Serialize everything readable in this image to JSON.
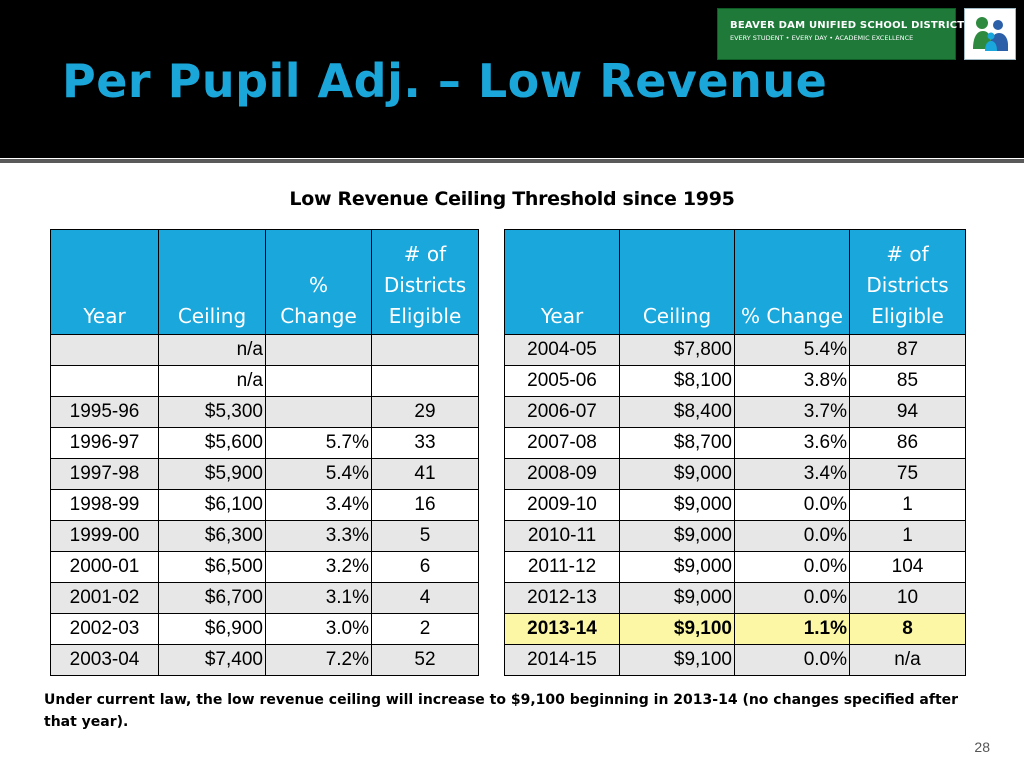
{
  "header": {
    "title": "Per Pupil Adj. – Low Revenue",
    "district_name": "BEAVER DAM UNIFIED SCHOOL DISTRICT",
    "district_tagline": "EVERY STUDENT • EVERY DAY • ACADEMIC EXCELLENCE",
    "logo_icon": "family-logo-icon"
  },
  "table_title": "Low Revenue Ceiling Threshold since 1995",
  "left_table": {
    "headers": {
      "year": "Year",
      "ceiling": "Ceiling",
      "pct_change": "% Change",
      "districts": "# of Districts Eligible"
    },
    "rows": [
      {
        "year": "",
        "ceiling": "n/a",
        "pct_change": "",
        "districts": ""
      },
      {
        "year": "",
        "ceiling": "n/a",
        "pct_change": "",
        "districts": ""
      },
      {
        "year": "1995-96",
        "ceiling": "$5,300",
        "pct_change": "",
        "districts": "29"
      },
      {
        "year": "1996-97",
        "ceiling": "$5,600",
        "pct_change": "5.7%",
        "districts": "33"
      },
      {
        "year": "1997-98",
        "ceiling": "$5,900",
        "pct_change": "5.4%",
        "districts": "41"
      },
      {
        "year": "1998-99",
        "ceiling": "$6,100",
        "pct_change": "3.4%",
        "districts": "16"
      },
      {
        "year": "1999-00",
        "ceiling": "$6,300",
        "pct_change": "3.3%",
        "districts": "5"
      },
      {
        "year": "2000-01",
        "ceiling": "$6,500",
        "pct_change": "3.2%",
        "districts": "6"
      },
      {
        "year": "2001-02",
        "ceiling": "$6,700",
        "pct_change": "3.1%",
        "districts": "4"
      },
      {
        "year": "2002-03",
        "ceiling": "$6,900",
        "pct_change": "3.0%",
        "districts": "2"
      },
      {
        "year": "2003-04",
        "ceiling": "$7,400",
        "pct_change": "7.2%",
        "districts": "52"
      }
    ]
  },
  "right_table": {
    "headers": {
      "year": "Year",
      "ceiling": "Ceiling",
      "pct_change": "% Change",
      "districts": "# of Districts Eligible"
    },
    "highlight_row": 9,
    "rows": [
      {
        "year": "2004-05",
        "ceiling": "$7,800",
        "pct_change": "5.4%",
        "districts": "87"
      },
      {
        "year": "2005-06",
        "ceiling": "$8,100",
        "pct_change": "3.8%",
        "districts": "85"
      },
      {
        "year": "2006-07",
        "ceiling": "$8,400",
        "pct_change": "3.7%",
        "districts": "94"
      },
      {
        "year": "2007-08",
        "ceiling": "$8,700",
        "pct_change": "3.6%",
        "districts": "86"
      },
      {
        "year": "2008-09",
        "ceiling": "$9,000",
        "pct_change": "3.4%",
        "districts": "75"
      },
      {
        "year": "2009-10",
        "ceiling": "$9,000",
        "pct_change": "0.0%",
        "districts": "1"
      },
      {
        "year": "2010-11",
        "ceiling": "$9,000",
        "pct_change": "0.0%",
        "districts": "1"
      },
      {
        "year": "2011-12",
        "ceiling": "$9,000",
        "pct_change": "0.0%",
        "districts": "104"
      },
      {
        "year": "2012-13",
        "ceiling": "$9,000",
        "pct_change": "0.0%",
        "districts": "10"
      },
      {
        "year": "2013-14",
        "ceiling": "$9,100",
        "pct_change": "1.1%",
        "districts": "8"
      },
      {
        "year": "2014-15",
        "ceiling": "$9,100",
        "pct_change": "0.0%",
        "districts": "n/a"
      }
    ]
  },
  "colors": {
    "title": "#1ba6d9",
    "header_fill": "#1aa7dc",
    "highlight_fill": "#fbf7a5",
    "badge_fill": "#1f7a3a"
  },
  "footnote": "Under current law, the low revenue ceiling will increase to $9,100 beginning in 2013-14 (no changes specified after that year).",
  "page_number": "28"
}
